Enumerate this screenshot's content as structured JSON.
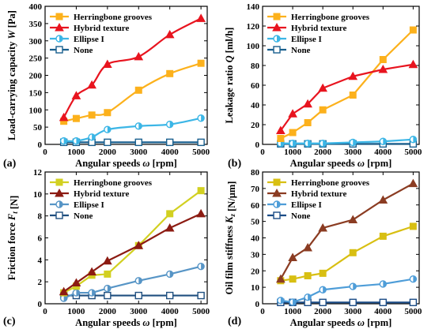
{
  "colors": {
    "herringbone": "#fcb11c",
    "hybrid": "#e8141f",
    "ellipse": "#3cb6e6",
    "none": "#185f8e",
    "friction_herringbone": "#d2d021",
    "friction_hybrid": "#8c1b12",
    "friction_ellipse": "#5795c6",
    "friction_none": "#1f4f7f",
    "stiff_herringbone": "#d8bf12",
    "stiff_hybrid": "#8b3c22",
    "stiff_ellipse": "#4e9dd8",
    "stiff_none": "#1b4c86"
  },
  "chart_data": [
    {
      "panel_label": "(a)",
      "type": "line",
      "xlabel": "Angular speeds ω [rpm]",
      "ylabel": "Load-carrying capacity W [Pa]",
      "xlim": [
        0,
        5200
      ],
      "ylim": [
        0,
        400
      ],
      "xticks": [
        0,
        1000,
        2000,
        3000,
        4000,
        5000
      ],
      "yticks": [
        0,
        50,
        100,
        150,
        200,
        250,
        300,
        350,
        400
      ],
      "x": [
        600,
        1000,
        1500,
        2000,
        3000,
        4000,
        5000
      ],
      "smooth": true,
      "legend": "top-left",
      "series": [
        {
          "name": "Herringbone grooves",
          "marker": "square",
          "color_key": "herringbone",
          "values": [
            67,
            75,
            85,
            92,
            157,
            205,
            235
          ]
        },
        {
          "name": "Hybrid texture",
          "marker": "triangle",
          "color_key": "hybrid",
          "values": [
            78,
            141,
            172,
            232,
            254,
            318,
            365
          ]
        },
        {
          "name": "Ellipse I",
          "marker": "half-circle",
          "color_key": "ellipse",
          "values": [
            10,
            10,
            21,
            43,
            53,
            58,
            76
          ]
        },
        {
          "name": "None",
          "marker": "square-open",
          "color_key": "none",
          "values": [
            6,
            6,
            6,
            6,
            6,
            6,
            6
          ]
        }
      ]
    },
    {
      "panel_label": "(b)",
      "type": "line",
      "xlabel": "Angular speeds ω [rpm]",
      "ylabel": "Leakage ratio Q [ml/h]",
      "xlim": [
        0,
        5200
      ],
      "ylim": [
        0,
        140
      ],
      "xticks": [
        0,
        1000,
        2000,
        3000,
        4000,
        5000
      ],
      "yticks": [
        0,
        20,
        40,
        60,
        80,
        100,
        120,
        140
      ],
      "x": [
        600,
        1000,
        1500,
        2000,
        3000,
        4000,
        5000
      ],
      "smooth": false,
      "legend": "top-left",
      "series": [
        {
          "name": "Herringbone grooves",
          "marker": "square",
          "color_key": "herringbone",
          "values": [
            6,
            12,
            22,
            35,
            50,
            86,
            116
          ]
        },
        {
          "name": "Hybrid texture",
          "marker": "triangle",
          "color_key": "hybrid",
          "values": [
            14,
            31,
            41,
            57,
            69,
            76,
            81
          ]
        },
        {
          "name": "Ellipse I",
          "marker": "half-circle",
          "color_key": "ellipse",
          "values": [
            1,
            1,
            1,
            1,
            2,
            3,
            5
          ]
        },
        {
          "name": "None",
          "marker": "square-open",
          "color_key": "none",
          "values": [
            0.5,
            0.5,
            0.5,
            0.5,
            0.5,
            0.5,
            0.5
          ]
        }
      ]
    },
    {
      "panel_label": "(c)",
      "type": "line",
      "xlabel": "Angular speeds ω [rpm]",
      "ylabel": "Friction force F_t [N]",
      "xlim": [
        0,
        5200
      ],
      "ylim": [
        0,
        12
      ],
      "xticks": [
        0,
        1000,
        2000,
        3000,
        4000,
        5000
      ],
      "yticks": [
        0,
        2,
        4,
        6,
        8,
        10,
        12
      ],
      "x": [
        600,
        1000,
        1500,
        2000,
        3000,
        4000,
        5000
      ],
      "smooth": false,
      "legend": "top-left",
      "series": [
        {
          "name": "Herringbone grooves",
          "marker": "square",
          "color_key": "friction_herringbone",
          "values": [
            1.0,
            1.6,
            2.6,
            2.7,
            5.3,
            8.2,
            10.3
          ]
        },
        {
          "name": "Hybrid texture",
          "marker": "triangle",
          "color_key": "friction_hybrid",
          "values": [
            1.1,
            1.9,
            2.9,
            3.9,
            5.3,
            6.9,
            8.2
          ]
        },
        {
          "name": "Ellipse I",
          "marker": "half-circle",
          "color_key": "friction_ellipse",
          "values": [
            0.5,
            1.0,
            1.0,
            1.4,
            2.1,
            2.7,
            3.4
          ]
        },
        {
          "name": "None",
          "marker": "square-open",
          "color_key": "friction_none",
          "values": [
            0.75,
            0.75,
            0.75,
            0.75,
            0.75,
            0.75,
            0.75
          ]
        }
      ]
    },
    {
      "panel_label": "(d)",
      "type": "line",
      "xlabel": "Angular speeds ω [rpm]",
      "ylabel": "Oil film stiffness K_z [N/μm]",
      "xlim": [
        0,
        5200
      ],
      "ylim": [
        0,
        80
      ],
      "xticks": [
        0,
        1000,
        2000,
        3000,
        4000,
        5000
      ],
      "yticks": [
        0,
        10,
        20,
        30,
        40,
        50,
        60,
        70,
        80
      ],
      "x": [
        600,
        1000,
        1500,
        2000,
        3000,
        4000,
        5000
      ],
      "smooth": false,
      "legend": "top-left",
      "series": [
        {
          "name": "Herringbone grooves",
          "marker": "square",
          "color_key": "stiff_herringbone",
          "values": [
            14,
            15,
            17,
            18.5,
            31,
            41,
            47
          ]
        },
        {
          "name": "Hybrid texture",
          "marker": "triangle",
          "color_key": "stiff_hybrid",
          "values": [
            15,
            28,
            34,
            46,
            51,
            63,
            73
          ]
        },
        {
          "name": "Ellipse I",
          "marker": "half-circle",
          "color_key": "stiff_ellipse",
          "values": [
            2,
            1,
            4,
            8.5,
            10.5,
            12,
            15
          ]
        },
        {
          "name": "None",
          "marker": "square-open",
          "color_key": "stiff_none",
          "values": [
            0.8,
            0.8,
            0.8,
            0.8,
            0.8,
            0.8,
            0.8
          ]
        }
      ]
    }
  ]
}
